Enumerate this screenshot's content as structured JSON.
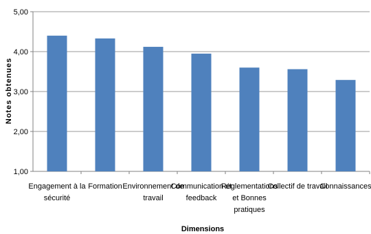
{
  "chart_data": {
    "type": "bar",
    "title": "",
    "xlabel": "Dimensions",
    "ylabel": "Notes obtenues",
    "ylim": [
      1,
      5
    ],
    "yticks": [
      "1,00",
      "2,00",
      "3,00",
      "4,00",
      "5,00"
    ],
    "ytick_values": [
      1,
      2,
      3,
      4,
      5
    ],
    "categories": [
      [
        "Engagement à la",
        "sécurité"
      ],
      [
        "Formation"
      ],
      [
        "Environnement de",
        "travail"
      ],
      [
        "Communication et",
        "feedback"
      ],
      [
        "Règlementations",
        "et Bonnes",
        "pratiques"
      ],
      [
        "Collectif de travail"
      ],
      [
        "Connaissances"
      ]
    ],
    "values": [
      4.4,
      4.33,
      4.12,
      3.95,
      3.6,
      3.56,
      3.29
    ],
    "grid": true,
    "legend": "none",
    "bar_color": "#4f81bd",
    "grid_color": "#9a9a9a"
  }
}
